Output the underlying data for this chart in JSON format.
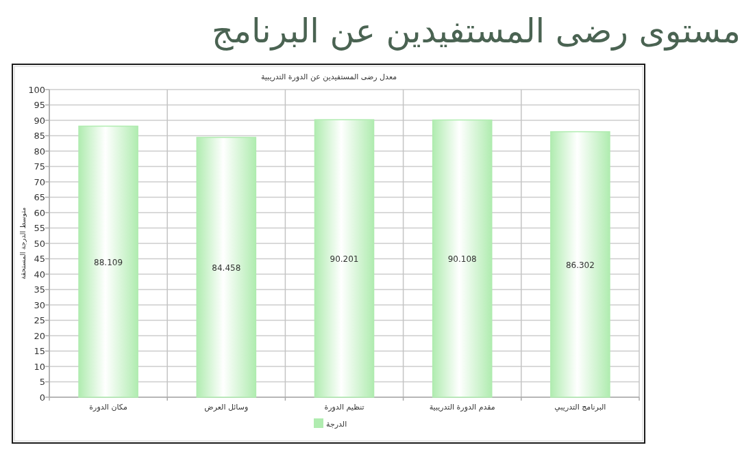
{
  "chart_data": {
    "type": "bar",
    "title": "مستوى رضى المستفيدين عن البرنامج",
    "subtitle": "معدل رضى المستفيدين عن الدورة التدريبية",
    "ylabel": "متوسط الدرجة المستحقة",
    "categories": [
      "مكان الدورة",
      "وسائل العرض",
      "تنظيم الدورة",
      "مقدم الدورة التدريبية",
      "البرنامج التدريبي"
    ],
    "series": [
      {
        "name": "الدرجة",
        "color": "#b0ecb0",
        "values": [
          88.109,
          84.458,
          90.201,
          90.108,
          86.302
        ]
      }
    ],
    "ylim": [
      0,
      100
    ],
    "yticks": [
      0,
      5,
      10,
      15,
      20,
      25,
      30,
      35,
      40,
      45,
      50,
      55,
      60,
      65,
      70,
      75,
      80,
      85,
      90,
      95,
      100
    ],
    "grid": true,
    "legend": "bottom",
    "data_labels": true
  }
}
